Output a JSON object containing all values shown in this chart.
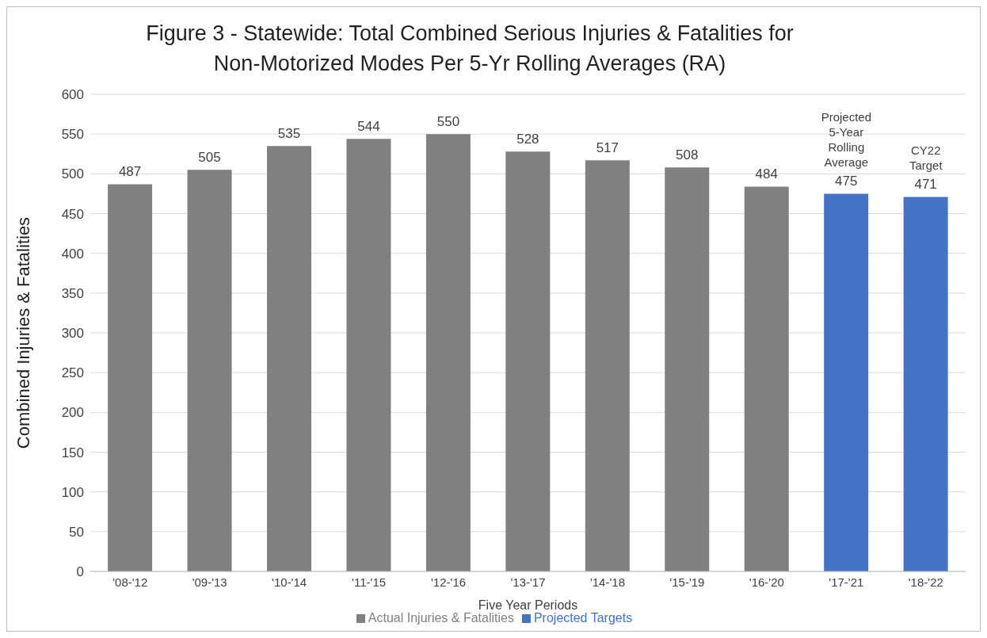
{
  "chart_data": {
    "type": "bar",
    "title": "Figure 3 - Statewide: Total Combined Serious Injuries & Fatalities for Non-Motorized Modes Per 5-Yr Rolling Averages (RA)",
    "xlabel": "Five Year Periods",
    "ylabel": "Combined Injuries & Fatalities",
    "categories": [
      "'08-'12",
      "'09-'13",
      "'10-'14",
      "'11-'15",
      "'12-'16",
      "'13-'17",
      "'14-'18",
      "'15-'19",
      "'16-'20",
      "'17-'21",
      "'18-'22"
    ],
    "series": [
      {
        "name": "Actual Injuries & Fatalities",
        "color": "#808080",
        "values": [
          487,
          505,
          535,
          544,
          550,
          528,
          517,
          508,
          484,
          null,
          null
        ]
      },
      {
        "name": "Projected Targets",
        "color": "#4472c4",
        "values": [
          null,
          null,
          null,
          null,
          null,
          null,
          null,
          null,
          null,
          475,
          471
        ]
      }
    ],
    "stacked": true,
    "ylim": [
      0,
      600
    ],
    "yticks": [
      0,
      50,
      100,
      150,
      200,
      250,
      300,
      350,
      400,
      450,
      500,
      550,
      600
    ],
    "grid": "y",
    "legend": "bottom",
    "data_labels": true,
    "annotations": [
      {
        "text": "Projected 5-Year Rolling Average",
        "x": "'17-'21",
        "y": 475
      },
      {
        "text": "CY22 Target",
        "x": "'18-'22",
        "y": 471
      }
    ]
  }
}
